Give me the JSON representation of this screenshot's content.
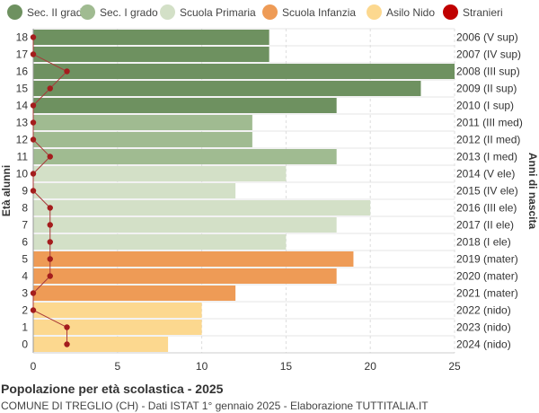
{
  "legend": [
    {
      "label": "Sec. II grado",
      "color": "#6e9160"
    },
    {
      "label": "Sec. I grado",
      "color": "#a0bb91"
    },
    {
      "label": "Scuola Primaria",
      "color": "#d3e0c7"
    },
    {
      "label": "Scuola Infanzia",
      "color": "#ee9b56"
    },
    {
      "label": "Asilo Nido",
      "color": "#fcd88f"
    },
    {
      "label": "Stranieri",
      "color": "#c00000"
    }
  ],
  "footer": {
    "title": "Popolazione per età scolastica - 2025",
    "subtitle": "COMUNE DI TREGLIO (CH) - Dati ISTAT 1° gennaio 2025 - Elaborazione TUTTITALIA.IT"
  },
  "chart_data": {
    "type": "bar",
    "orientation": "horizontal",
    "ylabel": "Età alunni",
    "ylabel_right": "Anni di nascita",
    "xlim": [
      0,
      25
    ],
    "xticks": [
      0,
      5,
      10,
      15,
      20,
      25
    ],
    "grid": true,
    "categories": [
      "18",
      "17",
      "16",
      "15",
      "14",
      "13",
      "12",
      "11",
      "10",
      "9",
      "8",
      "7",
      "6",
      "5",
      "4",
      "3",
      "2",
      "1",
      "0"
    ],
    "birth_years": [
      "2006 (V sup)",
      "2007 (IV sup)",
      "2008 (III sup)",
      "2009 (II sup)",
      "2010 (I sup)",
      "2011 (III med)",
      "2012 (II med)",
      "2013 (I med)",
      "2014 (V ele)",
      "2015 (IV ele)",
      "2016 (III ele)",
      "2017 (II ele)",
      "2018 (I ele)",
      "2019 (mater)",
      "2020 (mater)",
      "2021 (mater)",
      "2022 (nido)",
      "2023 (nido)",
      "2024 (nido)"
    ],
    "values": [
      14,
      14,
      25,
      23,
      18,
      13,
      13,
      18,
      15,
      12,
      20,
      18,
      15,
      19,
      18,
      12,
      10,
      10,
      8
    ],
    "school_level": [
      "Sec. II grado",
      "Sec. II grado",
      "Sec. II grado",
      "Sec. II grado",
      "Sec. II grado",
      "Sec. I grado",
      "Sec. I grado",
      "Sec. I grado",
      "Scuola Primaria",
      "Scuola Primaria",
      "Scuola Primaria",
      "Scuola Primaria",
      "Scuola Primaria",
      "Scuola Infanzia",
      "Scuola Infanzia",
      "Scuola Infanzia",
      "Asilo Nido",
      "Asilo Nido",
      "Asilo Nido"
    ],
    "stranieri": [
      0,
      0,
      2,
      1,
      0,
      0,
      0,
      1,
      0,
      0,
      1,
      1,
      1,
      1,
      1,
      0,
      0,
      2,
      2
    ]
  }
}
